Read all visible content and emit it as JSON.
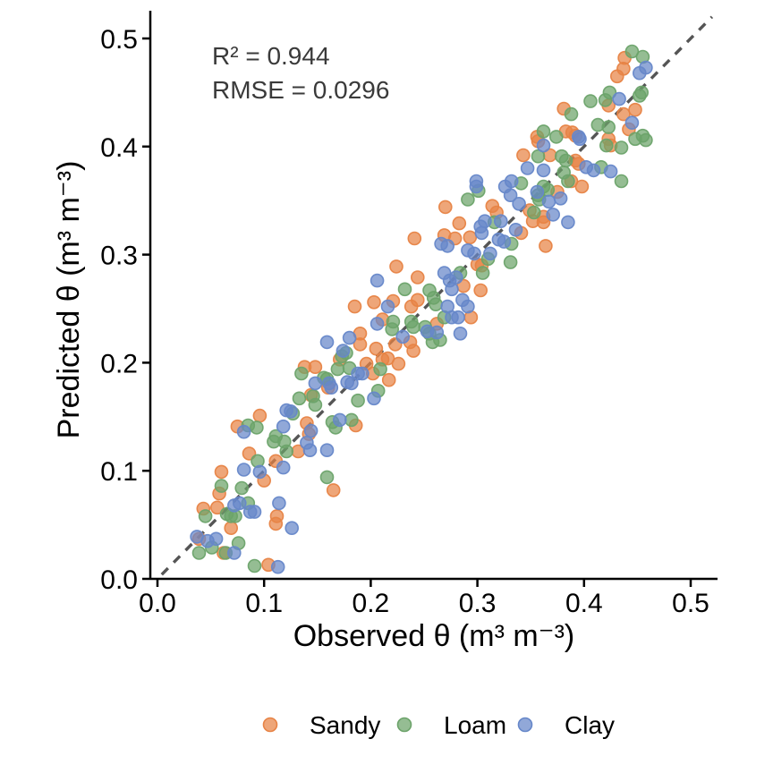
{
  "figure": {
    "background": "#FFFFFF",
    "annotation": {
      "line1": "R² = 0.944",
      "line2": "RMSE = 0.0296",
      "color": "#3A3A3A"
    }
  },
  "axes": {
    "x": {
      "title": "Observed θ (m³ m⁻³)",
      "tick_values": [
        0.0,
        0.1,
        0.2,
        0.3,
        0.4,
        0.5
      ],
      "tick_labels": [
        "0.0",
        "0.1",
        "0.2",
        "0.3",
        "0.4",
        "0.5"
      ],
      "range": [
        0,
        0.52
      ]
    },
    "y": {
      "title": "Predicted θ (m³ m⁻³)",
      "tick_values": [
        0.0,
        0.1,
        0.2,
        0.3,
        0.4,
        0.5
      ],
      "tick_labels": [
        "0.0",
        "0.1",
        "0.2",
        "0.3",
        "0.4",
        "0.5"
      ],
      "range": [
        0,
        0.52
      ]
    }
  },
  "reference_line": {
    "style": "dashed",
    "slope": 1,
    "intercept": 0,
    "color": "#555555",
    "span": [
      0.004,
      0.52
    ]
  },
  "legend": {
    "position": "bottom",
    "items": [
      {
        "label": "Sandy",
        "color": "#E78345"
      },
      {
        "label": "Loam",
        "color": "#6CA36A"
      },
      {
        "label": "Clay",
        "color": "#6687C9"
      }
    ]
  },
  "chart_data": {
    "type": "scatter",
    "title": "",
    "xlabel": "Observed θ (m³ m⁻³)",
    "ylabel": "Predicted θ (m³ m⁻³)",
    "xlim": [
      0,
      0.52
    ],
    "ylim": [
      0,
      0.52
    ],
    "grid": false,
    "legend_position": "bottom",
    "annotations": [
      "R² = 0.944",
      "RMSE = 0.0296"
    ],
    "point_style": {
      "radius": 7,
      "fill_opacity": 0.72,
      "stroke_width": 1.6
    },
    "series": [
      {
        "name": "Sandy",
        "color": "#E78345",
        "points": [
          [
            0.086,
            0.116
          ],
          [
            0.132,
            0.118
          ],
          [
            0.111,
            0.109
          ],
          [
            0.06,
            0.099
          ],
          [
            0.1,
            0.091
          ],
          [
            0.165,
            0.082
          ],
          [
            0.058,
            0.079
          ],
          [
            0.056,
            0.066
          ],
          [
            0.043,
            0.065
          ],
          [
            0.112,
            0.058
          ],
          [
            0.111,
            0.051
          ],
          [
            0.069,
            0.047
          ],
          [
            0.039,
            0.037
          ],
          [
            0.062,
            0.024
          ],
          [
            0.104,
            0.013
          ],
          [
            0.185,
            0.252
          ],
          [
            0.171,
            0.203
          ],
          [
            0.148,
            0.196
          ],
          [
            0.16,
            0.177
          ],
          [
            0.096,
            0.151
          ],
          [
            0.075,
            0.141
          ],
          [
            0.14,
            0.144
          ],
          [
            0.142,
            0.134
          ],
          [
            0.144,
            0.17
          ],
          [
            0.138,
            0.196
          ],
          [
            0.203,
            0.256
          ],
          [
            0.221,
            0.257
          ],
          [
            0.238,
            0.252
          ],
          [
            0.244,
            0.258
          ],
          [
            0.294,
            0.242
          ],
          [
            0.211,
            0.24
          ],
          [
            0.262,
            0.236
          ],
          [
            0.19,
            0.227
          ],
          [
            0.19,
            0.217
          ],
          [
            0.205,
            0.213
          ],
          [
            0.237,
            0.219
          ],
          [
            0.24,
            0.211
          ],
          [
            0.223,
            0.217
          ],
          [
            0.196,
            0.199
          ],
          [
            0.211,
            0.203
          ],
          [
            0.216,
            0.204
          ],
          [
            0.226,
            0.199
          ],
          [
            0.202,
            0.19
          ],
          [
            0.217,
            0.184
          ],
          [
            0.186,
            0.142
          ],
          [
            0.356,
            0.409
          ],
          [
            0.343,
            0.392
          ],
          [
            0.27,
            0.344
          ],
          [
            0.314,
            0.345
          ],
          [
            0.318,
            0.339
          ],
          [
            0.349,
            0.341
          ],
          [
            0.362,
            0.335
          ],
          [
            0.283,
            0.329
          ],
          [
            0.341,
            0.32
          ],
          [
            0.352,
            0.331
          ],
          [
            0.241,
            0.315
          ],
          [
            0.269,
            0.318
          ],
          [
            0.279,
            0.315
          ],
          [
            0.293,
            0.316
          ],
          [
            0.364,
            0.308
          ],
          [
            0.3,
            0.291
          ],
          [
            0.304,
            0.29
          ],
          [
            0.224,
            0.289
          ],
          [
            0.244,
            0.279
          ],
          [
            0.287,
            0.271
          ],
          [
            0.303,
            0.267
          ],
          [
            0.423,
            0.407
          ],
          [
            0.425,
            0.401
          ],
          [
            0.368,
            0.392
          ],
          [
            0.392,
            0.387
          ],
          [
            0.395,
            0.384
          ],
          [
            0.388,
            0.368
          ],
          [
            0.398,
            0.363
          ],
          [
            0.375,
            0.358
          ],
          [
            0.362,
            0.33
          ],
          [
            0.438,
            0.482
          ],
          [
            0.437,
            0.472
          ],
          [
            0.431,
            0.465
          ],
          [
            0.423,
            0.438
          ],
          [
            0.381,
            0.435
          ],
          [
            0.437,
            0.43
          ],
          [
            0.448,
            0.434
          ],
          [
            0.442,
            0.416
          ],
          [
            0.383,
            0.414
          ],
          [
            0.389,
            0.413
          ],
          [
            0.392,
            0.41
          ],
          [
            0.357,
            0.405
          ]
        ]
      },
      {
        "name": "Loam",
        "color": "#6CA36A",
        "points": [
          [
            0.109,
            0.127
          ],
          [
            0.094,
            0.109
          ],
          [
            0.121,
            0.118
          ],
          [
            0.159,
            0.094
          ],
          [
            0.06,
            0.086
          ],
          [
            0.079,
            0.084
          ],
          [
            0.085,
            0.07
          ],
          [
            0.045,
            0.058
          ],
          [
            0.065,
            0.06
          ],
          [
            0.069,
            0.058
          ],
          [
            0.073,
            0.058
          ],
          [
            0.051,
            0.029
          ],
          [
            0.039,
            0.024
          ],
          [
            0.064,
            0.024
          ],
          [
            0.076,
            0.033
          ],
          [
            0.091,
            0.012
          ],
          [
            0.177,
            0.209
          ],
          [
            0.169,
            0.194
          ],
          [
            0.135,
            0.19
          ],
          [
            0.159,
            0.185
          ],
          [
            0.133,
            0.167
          ],
          [
            0.146,
            0.169
          ],
          [
            0.148,
            0.161
          ],
          [
            0.127,
            0.153
          ],
          [
            0.085,
            0.142
          ],
          [
            0.093,
            0.14
          ],
          [
            0.111,
            0.132
          ],
          [
            0.164,
            0.145
          ],
          [
            0.167,
            0.14
          ],
          [
            0.119,
            0.127
          ],
          [
            0.156,
            0.186
          ],
          [
            0.173,
            0.206
          ],
          [
            0.18,
            0.195
          ],
          [
            0.259,
            0.26
          ],
          [
            0.261,
            0.254
          ],
          [
            0.221,
            0.238
          ],
          [
            0.22,
            0.231
          ],
          [
            0.238,
            0.238
          ],
          [
            0.24,
            0.233
          ],
          [
            0.251,
            0.233
          ],
          [
            0.255,
            0.227
          ],
          [
            0.269,
            0.242
          ],
          [
            0.258,
            0.219
          ],
          [
            0.265,
            0.221
          ],
          [
            0.209,
            0.194
          ],
          [
            0.207,
            0.174
          ],
          [
            0.188,
            0.165
          ],
          [
            0.182,
            0.147
          ],
          [
            0.357,
            0.391
          ],
          [
            0.301,
            0.359
          ],
          [
            0.291,
            0.351
          ],
          [
            0.341,
            0.366
          ],
          [
            0.358,
            0.351
          ],
          [
            0.316,
            0.33
          ],
          [
            0.353,
            0.339
          ],
          [
            0.31,
            0.296
          ],
          [
            0.332,
            0.31
          ],
          [
            0.305,
            0.283
          ],
          [
            0.331,
            0.293
          ],
          [
            0.232,
            0.268
          ],
          [
            0.284,
            0.283
          ],
          [
            0.255,
            0.267
          ],
          [
            0.374,
            0.409
          ],
          [
            0.421,
            0.401
          ],
          [
            0.435,
            0.399
          ],
          [
            0.448,
            0.407
          ],
          [
            0.458,
            0.406
          ],
          [
            0.379,
            0.391
          ],
          [
            0.383,
            0.387
          ],
          [
            0.416,
            0.381
          ],
          [
            0.435,
            0.368
          ],
          [
            0.381,
            0.376
          ],
          [
            0.385,
            0.368
          ],
          [
            0.362,
            0.363
          ],
          [
            0.366,
            0.36
          ],
          [
            0.357,
            0.355
          ],
          [
            0.445,
            0.488
          ],
          [
            0.455,
            0.483
          ],
          [
            0.424,
            0.45
          ],
          [
            0.454,
            0.45
          ],
          [
            0.452,
            0.447
          ],
          [
            0.42,
            0.443
          ],
          [
            0.406,
            0.442
          ],
          [
            0.388,
            0.43
          ],
          [
            0.413,
            0.42
          ],
          [
            0.423,
            0.418
          ],
          [
            0.455,
            0.41
          ],
          [
            0.362,
            0.414
          ]
        ]
      },
      {
        "name": "Clay",
        "color": "#6687C9",
        "points": [
          [
            0.14,
            0.126
          ],
          [
            0.159,
            0.119
          ],
          [
            0.143,
            0.119
          ],
          [
            0.081,
            0.101
          ],
          [
            0.096,
            0.099
          ],
          [
            0.118,
            0.103
          ],
          [
            0.077,
            0.07
          ],
          [
            0.072,
            0.068
          ],
          [
            0.087,
            0.062
          ],
          [
            0.114,
            0.07
          ],
          [
            0.037,
            0.039
          ],
          [
            0.047,
            0.035
          ],
          [
            0.055,
            0.037
          ],
          [
            0.072,
            0.024
          ],
          [
            0.091,
            0.062
          ],
          [
            0.126,
            0.047
          ],
          [
            0.113,
            0.011
          ],
          [
            0.159,
            0.219
          ],
          [
            0.18,
            0.223
          ],
          [
            0.174,
            0.211
          ],
          [
            0.148,
            0.181
          ],
          [
            0.178,
            0.182
          ],
          [
            0.121,
            0.156
          ],
          [
            0.125,
            0.155
          ],
          [
            0.081,
            0.136
          ],
          [
            0.118,
            0.141
          ],
          [
            0.144,
            0.137
          ],
          [
            0.171,
            0.147
          ],
          [
            0.161,
            0.181
          ],
          [
            0.163,
            0.177
          ],
          [
            0.216,
            0.252
          ],
          [
            0.272,
            0.252
          ],
          [
            0.286,
            0.258
          ],
          [
            0.206,
            0.236
          ],
          [
            0.23,
            0.224
          ],
          [
            0.253,
            0.229
          ],
          [
            0.276,
            0.242
          ],
          [
            0.282,
            0.242
          ],
          [
            0.262,
            0.228
          ],
          [
            0.284,
            0.227
          ],
          [
            0.188,
            0.19
          ],
          [
            0.192,
            0.19
          ],
          [
            0.182,
            0.181
          ],
          [
            0.203,
            0.167
          ],
          [
            0.362,
            0.401
          ],
          [
            0.347,
            0.38
          ],
          [
            0.362,
            0.378
          ],
          [
            0.299,
            0.368
          ],
          [
            0.299,
            0.363
          ],
          [
            0.326,
            0.363
          ],
          [
            0.332,
            0.368
          ],
          [
            0.331,
            0.355
          ],
          [
            0.339,
            0.347
          ],
          [
            0.356,
            0.358
          ],
          [
            0.307,
            0.331
          ],
          [
            0.322,
            0.331
          ],
          [
            0.303,
            0.326
          ],
          [
            0.304,
            0.32
          ],
          [
            0.336,
            0.323
          ],
          [
            0.266,
            0.31
          ],
          [
            0.272,
            0.308
          ],
          [
            0.291,
            0.304
          ],
          [
            0.297,
            0.301
          ],
          [
            0.312,
            0.301
          ],
          [
            0.32,
            0.314
          ],
          [
            0.325,
            0.312
          ],
          [
            0.206,
            0.276
          ],
          [
            0.269,
            0.283
          ],
          [
            0.274,
            0.276
          ],
          [
            0.276,
            0.268
          ],
          [
            0.28,
            0.279
          ],
          [
            0.291,
            0.252
          ],
          [
            0.396,
            0.407
          ],
          [
            0.402,
            0.381
          ],
          [
            0.409,
            0.378
          ],
          [
            0.425,
            0.377
          ],
          [
            0.378,
            0.352
          ],
          [
            0.367,
            0.349
          ],
          [
            0.371,
            0.337
          ],
          [
            0.385,
            0.33
          ],
          [
            0.458,
            0.473
          ],
          [
            0.452,
            0.468
          ],
          [
            0.433,
            0.444
          ],
          [
            0.445,
            0.422
          ],
          [
            0.395,
            0.409
          ]
        ]
      }
    ]
  }
}
